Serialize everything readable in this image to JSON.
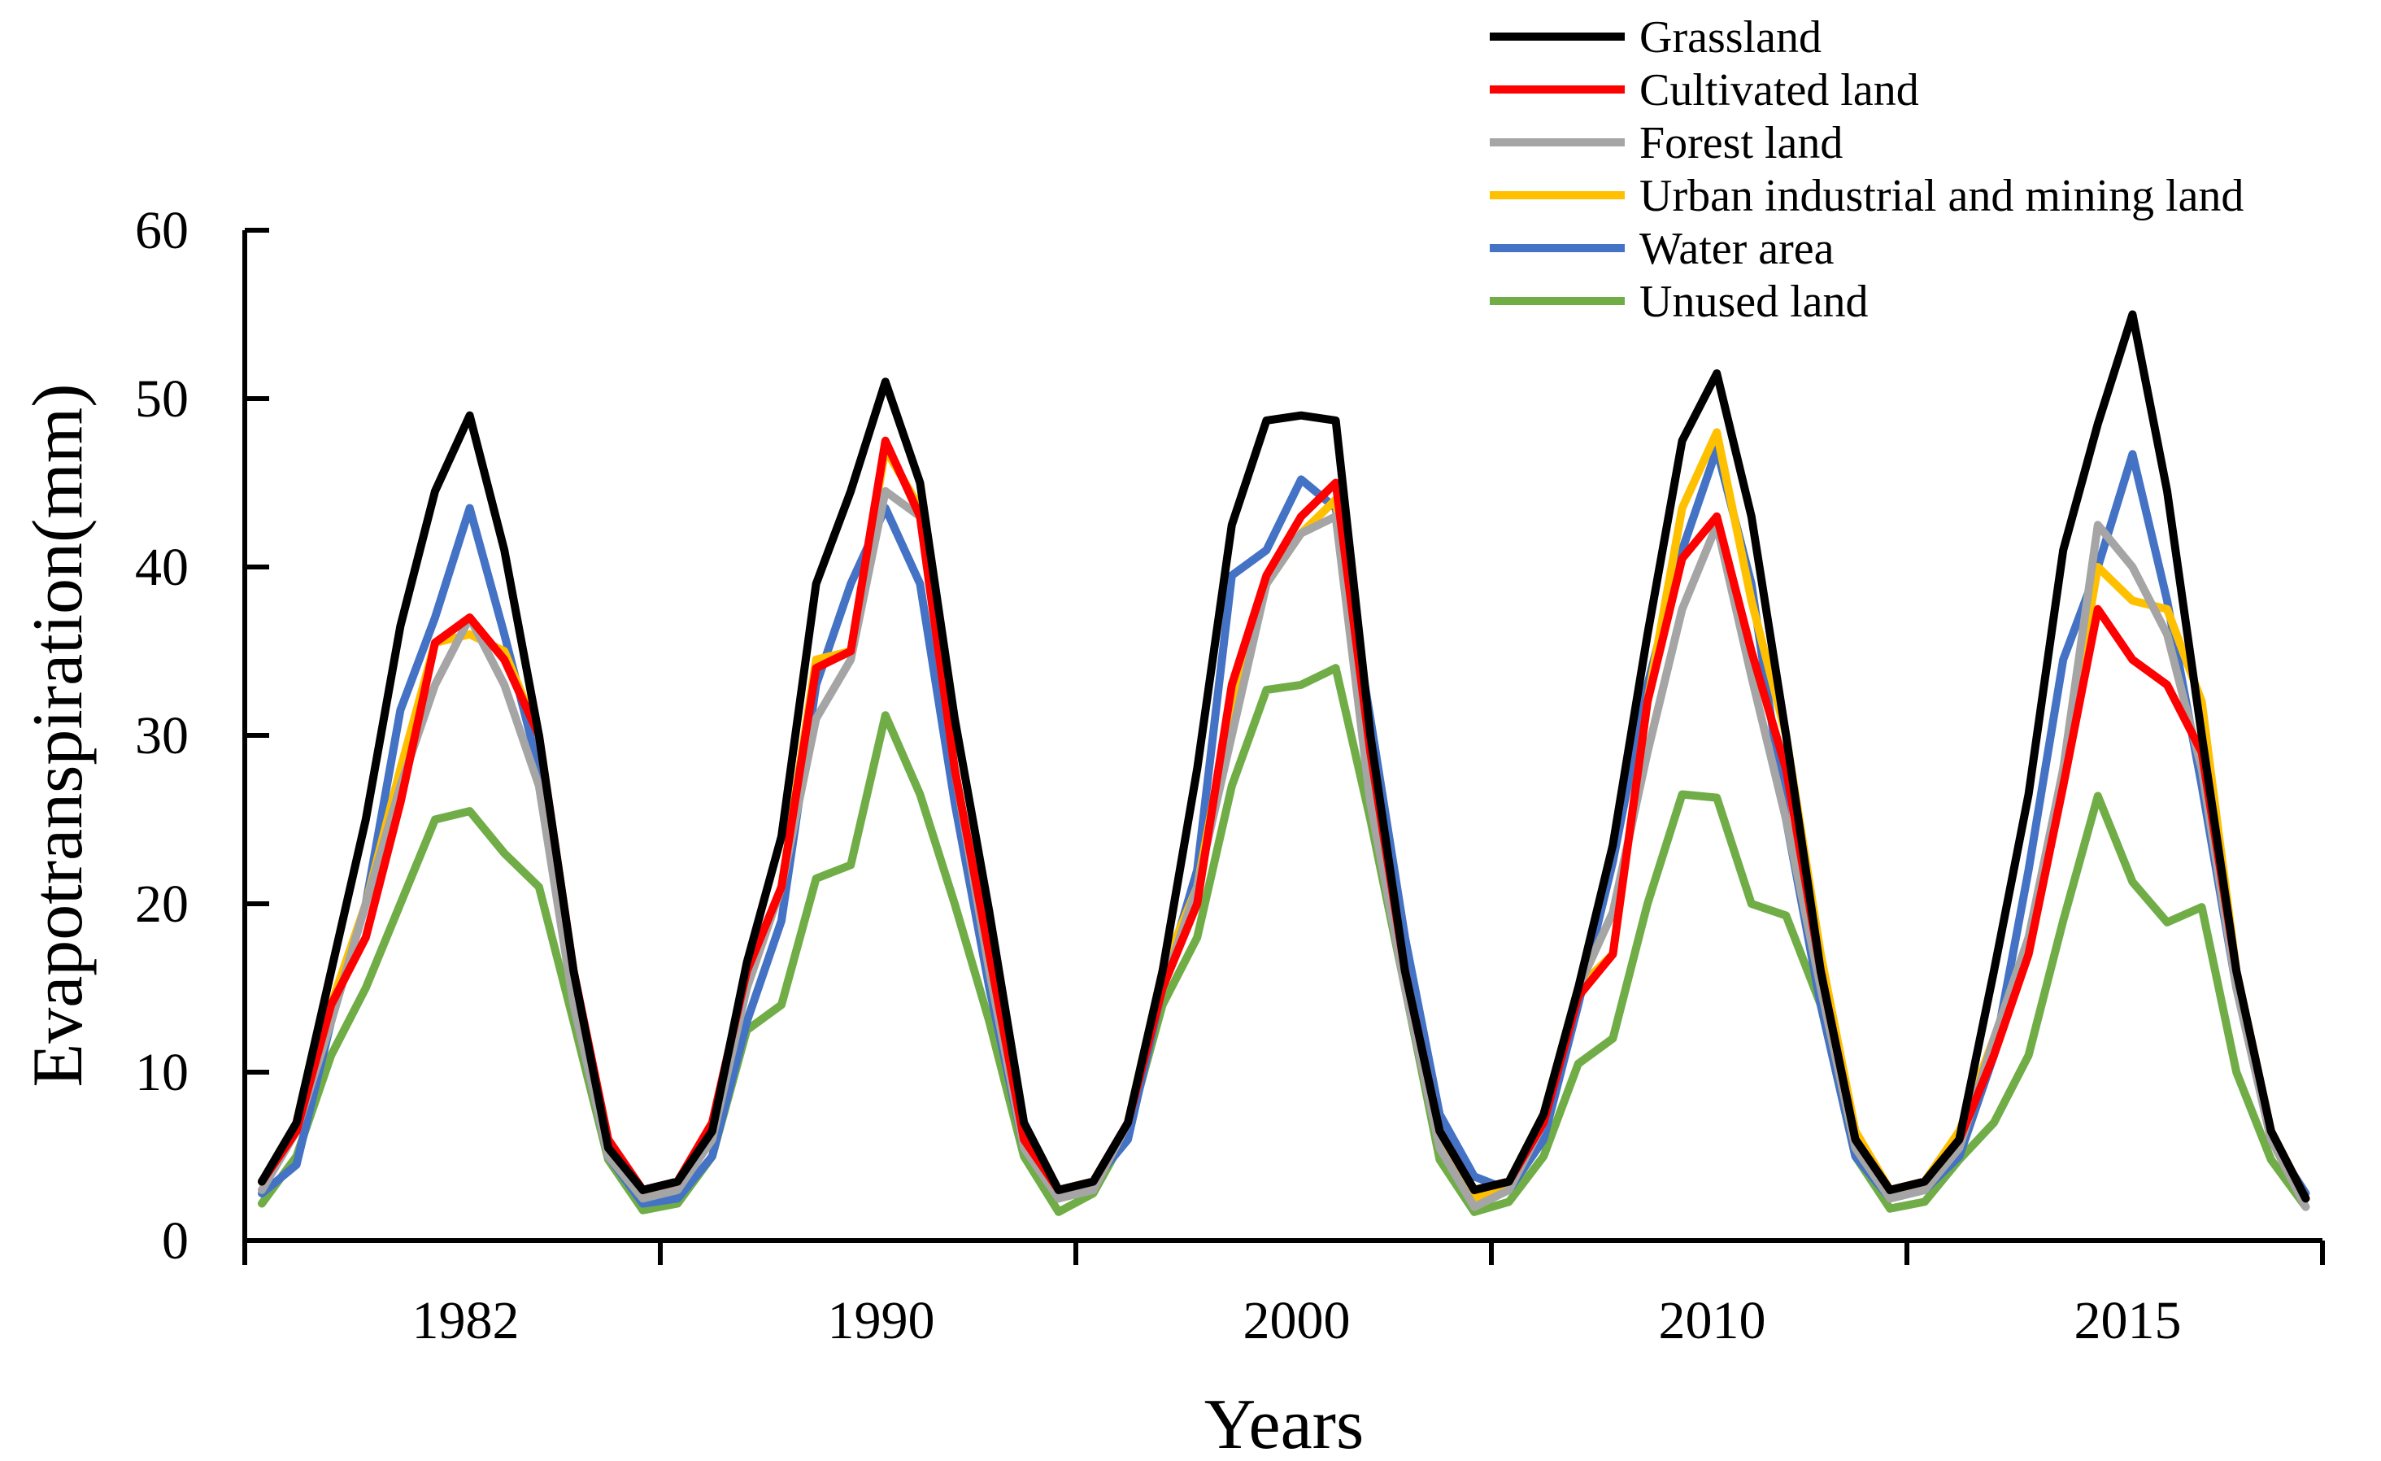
{
  "chart_data": {
    "type": "line",
    "title": "",
    "xlabel": "Years",
    "ylabel": "Evapotranspiration(mm)",
    "ylim": [
      0,
      60
    ],
    "yticks": [
      0,
      10,
      20,
      30,
      40,
      50,
      60
    ],
    "grid": false,
    "legend_position": "top-right",
    "x_tick_labels": [
      "1982",
      "1990",
      "2000",
      "2010",
      "2015"
    ],
    "months_per_year": 12,
    "series": [
      {
        "name": "Grassland",
        "color": "#000000",
        "values": [
          3.5,
          7,
          16,
          25,
          36.5,
          44.5,
          49,
          41,
          30,
          16,
          5.5,
          3,
          3.5,
          6.5,
          16.5,
          24,
          39,
          44.5,
          51,
          45,
          31,
          19.5,
          7,
          3,
          3.5,
          7,
          16,
          28,
          42.5,
          48.7,
          49,
          48.7,
          30,
          16,
          6.5,
          3,
          3.5,
          7.5,
          15,
          23.5,
          36,
          47.5,
          51.5,
          43,
          30,
          16,
          6,
          3,
          3.5,
          6,
          16,
          26.5,
          41,
          48.5,
          55,
          44.5,
          30,
          16,
          6.5,
          2.5
        ]
      },
      {
        "name": "Cultivated land",
        "color": "#FF0000",
        "values": [
          3.5,
          6.5,
          14,
          18,
          26,
          35.5,
          37,
          34.5,
          30,
          16,
          6,
          3,
          3.5,
          7,
          16,
          21,
          34,
          35,
          47.5,
          43,
          28,
          17,
          6,
          3,
          3.5,
          7,
          15,
          20,
          33,
          39.5,
          43,
          45,
          29,
          16,
          6.5,
          3,
          3.5,
          7,
          14.5,
          17,
          32,
          40.5,
          43,
          35,
          28,
          16,
          6,
          3,
          3.5,
          6,
          11,
          17,
          27,
          37.5,
          34.5,
          33,
          29,
          16,
          6.5,
          2.5
        ]
      },
      {
        "name": "Forest land",
        "color": "#A5A5A5",
        "values": [
          3,
          6.5,
          13,
          20,
          27,
          33,
          37,
          33,
          27,
          14,
          5,
          2.5,
          3,
          6,
          15,
          21,
          31,
          34.5,
          44.5,
          43,
          28,
          16,
          5.5,
          2.5,
          3,
          7,
          15,
          21,
          30,
          39,
          42,
          43,
          26,
          15,
          5.5,
          2,
          3,
          7,
          15,
          19.5,
          29,
          37.5,
          42.5,
          33.5,
          25,
          15,
          5.5,
          2.5,
          3,
          5.5,
          12,
          18,
          28,
          42.5,
          40,
          36,
          28,
          15,
          6,
          2
        ]
      },
      {
        "name": "Urban industrial and mining land",
        "color": "#FFC000",
        "values": [
          3.5,
          6.5,
          14,
          20,
          28,
          35.5,
          36,
          35,
          30,
          16,
          5.5,
          2.8,
          3.5,
          7,
          15,
          21,
          34.5,
          35,
          47,
          43.5,
          28,
          17,
          6,
          3,
          3.5,
          7,
          16,
          21,
          32,
          39,
          42,
          44,
          29,
          16,
          6,
          2.5,
          3.5,
          7.5,
          15,
          17,
          32,
          43.5,
          48,
          38,
          30,
          17,
          6.5,
          3,
          3.5,
          6.5,
          12,
          17.5,
          28,
          40,
          38,
          37.5,
          32,
          16,
          6.5,
          2.5
        ]
      },
      {
        "name": "Water area",
        "color": "#4472C4",
        "values": [
          2.8,
          4.5,
          13,
          20,
          31.5,
          37,
          43.5,
          36,
          28,
          14,
          5,
          2.2,
          2.5,
          5,
          13,
          19,
          33,
          39,
          43.5,
          39,
          26,
          15,
          5.5,
          2.5,
          3.5,
          6,
          15,
          22,
          39.5,
          41,
          45.2,
          43.5,
          31,
          18,
          7.5,
          3.8,
          3,
          6,
          14,
          22.5,
          33,
          41,
          47,
          39,
          25,
          14,
          5,
          2.5,
          3,
          5,
          11,
          22,
          34.5,
          40,
          46.7,
          38,
          27,
          15,
          6,
          2.8
        ]
      },
      {
        "name": "Unused land",
        "color": "#70AD47",
        "values": [
          2.2,
          5,
          11,
          15,
          20,
          25,
          25.5,
          23,
          21,
          13,
          4.8,
          1.8,
          2.2,
          5,
          12.5,
          14,
          21.5,
          22.3,
          31.2,
          26.5,
          20,
          13,
          5,
          1.7,
          2.8,
          6.5,
          14,
          18,
          27,
          32.7,
          33,
          34,
          25,
          15,
          4.8,
          1.7,
          2.3,
          5,
          10.5,
          12,
          20,
          26.5,
          26.3,
          20,
          19.3,
          14,
          5,
          1.9,
          2.3,
          4.8,
          7,
          11,
          19,
          26.4,
          21.3,
          18.9,
          19.8,
          10,
          4.8,
          2
        ]
      }
    ]
  }
}
